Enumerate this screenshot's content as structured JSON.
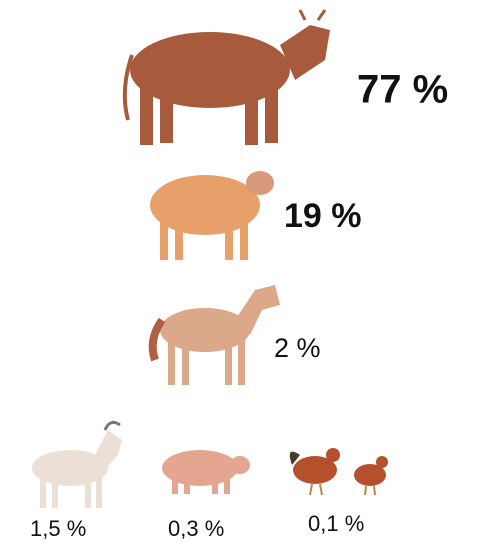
{
  "items": [
    {
      "label": "77 %"
    },
    {
      "label": "19 %"
    },
    {
      "label": "2 %"
    },
    {
      "label": "1,5 %"
    },
    {
      "label": "0,3 %"
    },
    {
      "label": "0,1 %"
    }
  ]
}
